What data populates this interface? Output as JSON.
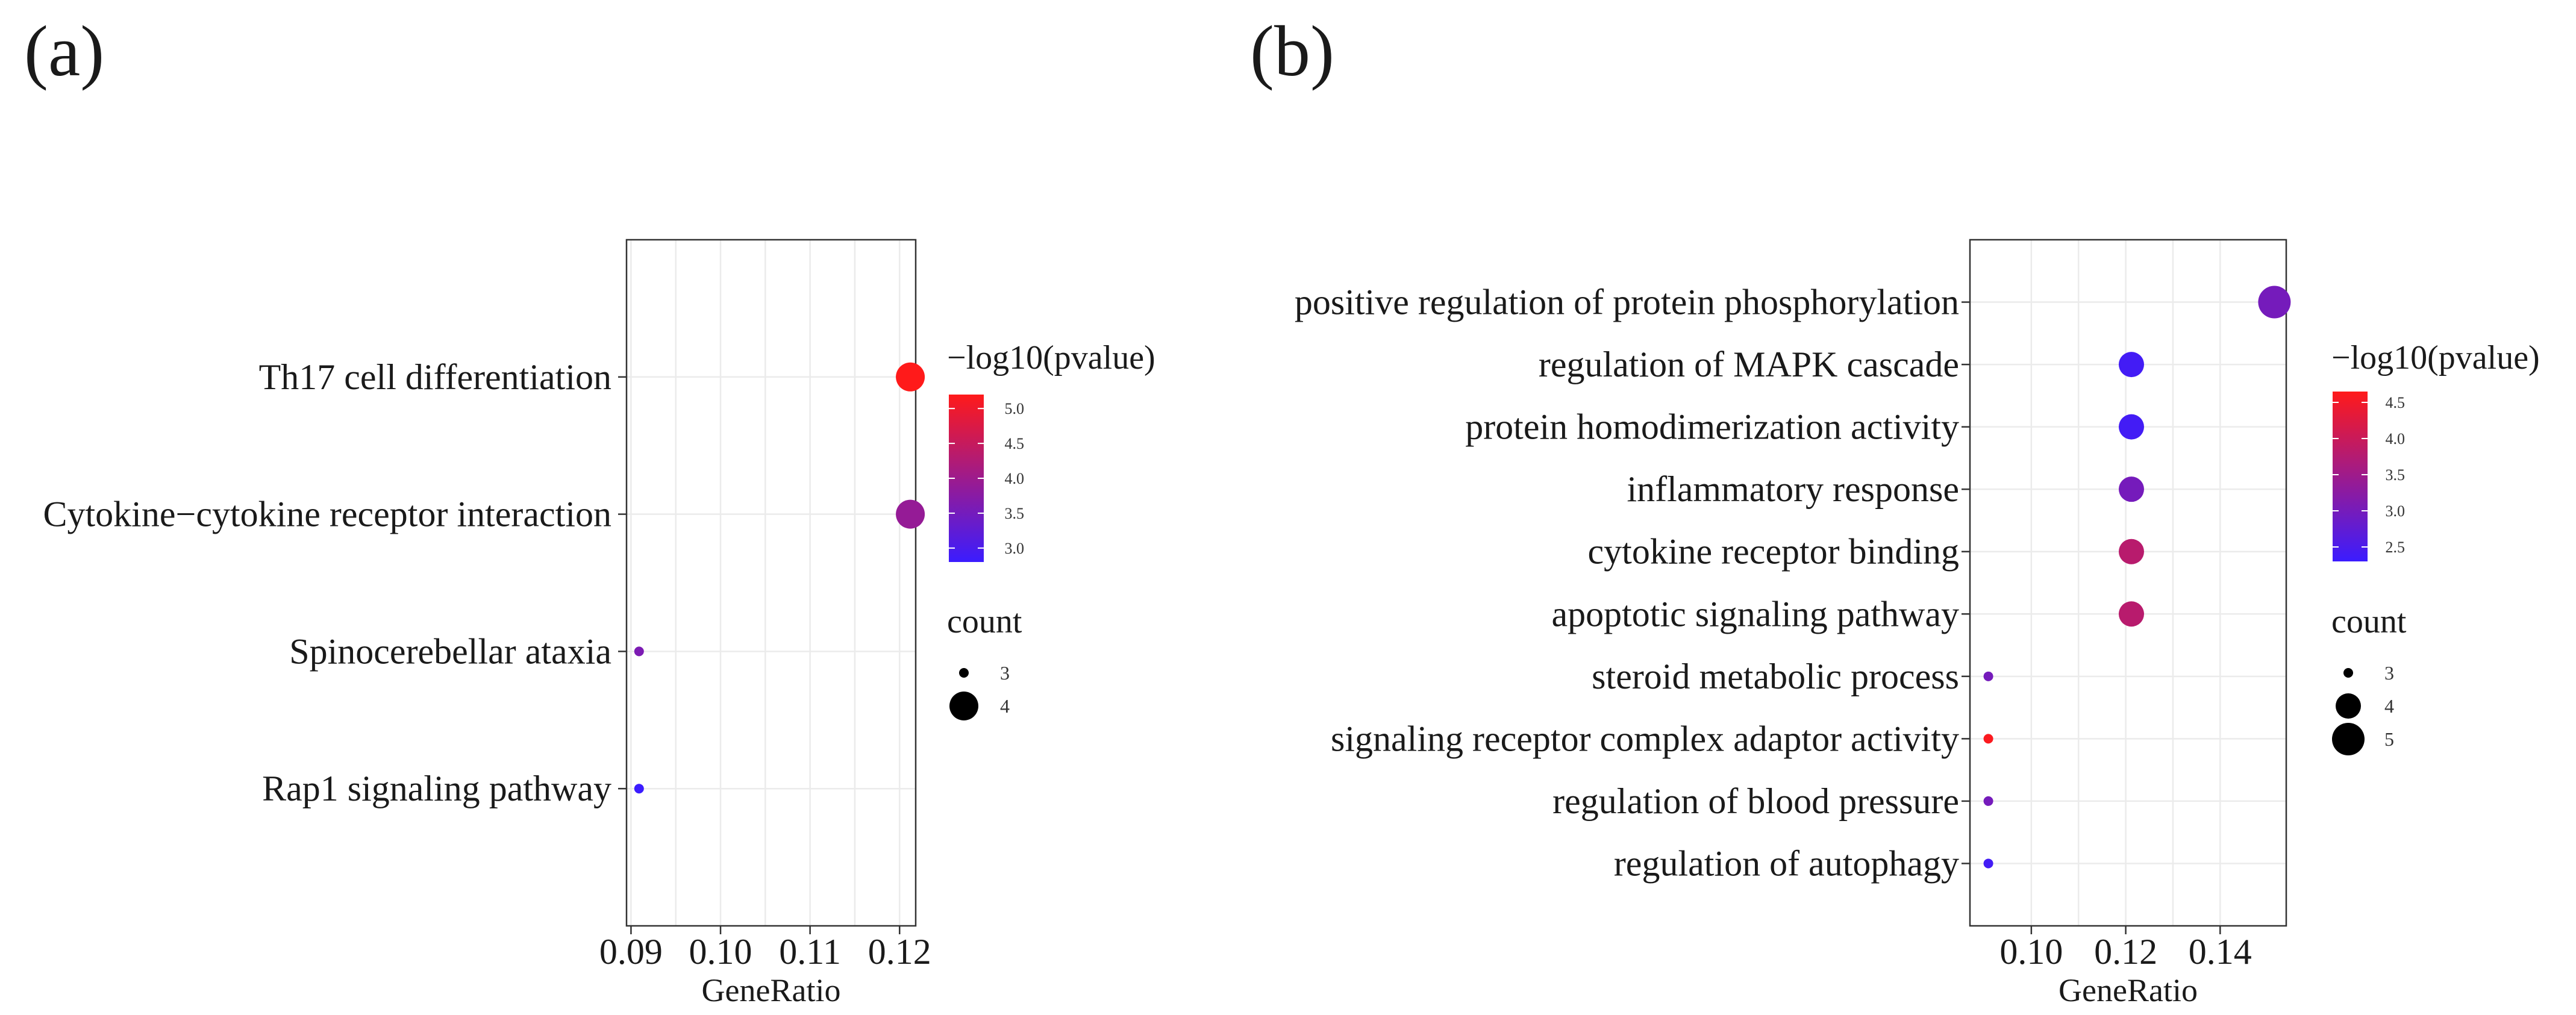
{
  "chart_data": [
    {
      "type": "scatter",
      "panel_label": "(a)",
      "xlabel": "GeneRatio",
      "xlim": [
        0.0895,
        0.1218
      ],
      "x_ticks": [
        0.09,
        0.1,
        0.11,
        0.12
      ],
      "x_tick_labels": [
        "0.09",
        "0.10",
        "0.11",
        "0.12"
      ],
      "categories": [
        "Th17 cell differentiation",
        "Cytokine−cytokine receptor interaction",
        "Spinocerebellar ataxia",
        "Rap1 signaling pathway"
      ],
      "gene_ratio": [
        0.1212,
        0.1212,
        0.0909,
        0.0909
      ],
      "count": [
        4,
        4,
        3,
        3
      ],
      "neg_log10_pvalue": [
        5.2,
        3.9,
        3.6,
        2.8
      ],
      "color_legend": {
        "title": "−log10(pvalue)",
        "range": [
          2.8,
          5.2
        ],
        "ticks": [
          3.0,
          3.5,
          4.0,
          4.5,
          5.0
        ],
        "tick_labels": [
          "3.0",
          "3.5",
          "4.0",
          "4.5",
          "5.0"
        ],
        "low_color": "#3b1cff",
        "high_color": "#ff1a1a"
      },
      "size_legend": {
        "title": "count",
        "values": [
          3,
          4
        ],
        "labels": [
          "3",
          "4"
        ],
        "key_color": "#000000"
      },
      "grid": true
    },
    {
      "type": "scatter",
      "panel_label": "(b)",
      "xlabel": "GeneRatio",
      "xlim": [
        0.087,
        0.154
      ],
      "x_ticks": [
        0.1,
        0.12,
        0.14
      ],
      "x_tick_labels": [
        "0.10",
        "0.12",
        "0.14"
      ],
      "categories": [
        "positive regulation of protein phosphorylation",
        "regulation of MAPK cascade",
        "protein homodimerization activity",
        "inflammatory response",
        "cytokine receptor binding",
        "apoptotic signaling pathway",
        "steroid metabolic process",
        "signaling receptor complex adaptor activity",
        "regulation of blood pressure",
        "regulation of autophagy"
      ],
      "gene_ratio": [
        0.1515,
        0.1212,
        0.1212,
        0.1212,
        0.1212,
        0.1212,
        0.0909,
        0.0909,
        0.0909,
        0.0909
      ],
      "count": [
        5,
        4,
        4,
        4,
        4,
        4,
        3,
        3,
        3,
        3
      ],
      "neg_log10_pvalue": [
        3.0,
        2.4,
        2.4,
        3.0,
        3.8,
        3.8,
        3.0,
        4.6,
        3.0,
        2.4
      ],
      "color_legend": {
        "title": "−log10(pvalue)",
        "range": [
          2.3,
          4.65
        ],
        "ticks": [
          2.5,
          3.0,
          3.5,
          4.0,
          4.5
        ],
        "tick_labels": [
          "2.5",
          "3.0",
          "3.5",
          "4.0",
          "4.5"
        ],
        "low_color": "#3b1cff",
        "high_color": "#ff1a1a"
      },
      "size_legend": {
        "title": "count",
        "values": [
          3,
          4,
          5
        ],
        "labels": [
          "3",
          "4",
          "5"
        ],
        "key_color": "#000000"
      },
      "grid": true
    }
  ]
}
